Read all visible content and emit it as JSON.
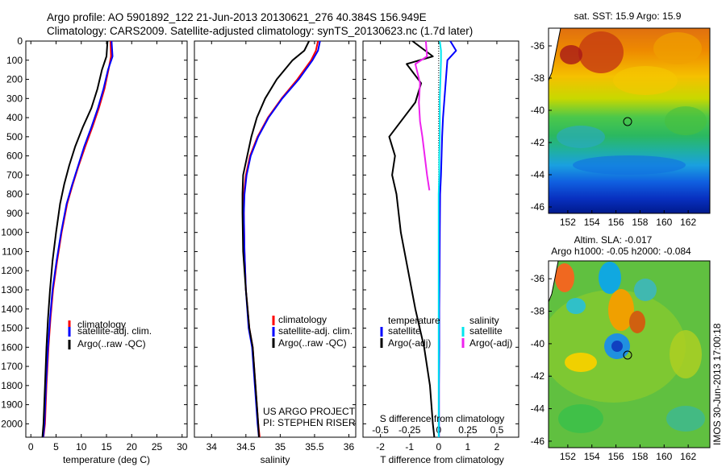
{
  "header": {
    "line1": "Argo profile: AO 5901892_122 21-Jun-2013 20130621_276 40.384S 156.949E",
    "line2": "Climatology: CARS2009. Satellite-adjusted climatology: synTS_20130623.nc (1.7d later)"
  },
  "credit": "IMOS 30-Jun-2013 17:00:18",
  "project": {
    "line1": "US ARGO PROJECT",
    "line2": "PI: STEPHEN RISER"
  },
  "colors": {
    "climatology": "#ff0000",
    "satellite": "#0000ff",
    "argo": "#000000",
    "salinity_satellite": "#00e5ee",
    "salinity_argo": "#ee22ee"
  },
  "chart_data": [
    {
      "id": "temperature",
      "type": "line",
      "xlabel": "temperature (deg C)",
      "ylabel": "",
      "xlim": [
        -1,
        31
      ],
      "ylim": [
        2070,
        0
      ],
      "y_inverted": true,
      "xticks": [
        0,
        5,
        10,
        15,
        20,
        25,
        30
      ],
      "yticks": [
        0,
        100,
        200,
        300,
        400,
        500,
        600,
        700,
        800,
        900,
        1000,
        1100,
        1200,
        1300,
        1400,
        1500,
        1600,
        1700,
        1800,
        1900,
        2000
      ],
      "series": [
        {
          "name": "climatology",
          "color": "#ff0000",
          "x": [
            15.8,
            15.9,
            15.4,
            14.6,
            13.5,
            12.2,
            10.8,
            9.5,
            8.3,
            7.2,
            6.1,
            5.2,
            4.4,
            3.9,
            3.5,
            3.1,
            2.8,
            2.5
          ],
          "y": [
            0,
            80,
            150,
            250,
            350,
            450,
            550,
            650,
            750,
            850,
            1000,
            1150,
            1300,
            1450,
            1600,
            1800,
            2000,
            2070
          ]
        },
        {
          "name": "satellite-adj. clim.",
          "color": "#0000ff",
          "x": [
            16.0,
            16.2,
            15.3,
            14.4,
            13.3,
            12.0,
            10.6,
            9.4,
            8.2,
            7.1,
            6.0,
            5.1,
            4.3,
            3.8,
            3.4,
            3.0,
            2.7,
            2.45
          ],
          "y": [
            0,
            80,
            150,
            250,
            350,
            450,
            550,
            650,
            750,
            850,
            1000,
            1150,
            1300,
            1450,
            1600,
            1800,
            2000,
            2070
          ]
        },
        {
          "name": "Argo(..raw -QC)",
          "color": "#000000",
          "x": [
            15.2,
            15.0,
            14.1,
            13.2,
            12.0,
            10.3,
            8.8,
            7.6,
            6.6,
            5.8,
            5.0,
            4.3,
            3.8,
            3.4,
            3.1,
            2.8,
            2.5,
            2.3
          ],
          "y": [
            0,
            80,
            150,
            250,
            350,
            450,
            550,
            650,
            750,
            850,
            1000,
            1150,
            1300,
            1450,
            1600,
            1800,
            2000,
            2070
          ]
        }
      ],
      "legend": [
        "climatology",
        "satellite-adj. clim.",
        "Argo(..raw -QC)"
      ]
    },
    {
      "id": "salinity",
      "type": "line",
      "xlabel": "salinity",
      "ylabel": "",
      "xlim": [
        33.75,
        36.1
      ],
      "ylim": [
        2070,
        0
      ],
      "y_inverted": true,
      "xticks": [
        34,
        34.5,
        35,
        35.5,
        36
      ],
      "xticklabels": [
        "34",
        "34.5",
        "35",
        "35.5",
        "36"
      ],
      "series": [
        {
          "name": "climatology",
          "color": "#ff0000",
          "x": [
            35.55,
            35.52,
            35.45,
            35.25,
            35.02,
            34.82,
            34.67,
            34.56,
            34.5,
            34.47,
            34.47,
            34.48,
            34.5,
            34.55,
            34.6,
            34.64,
            34.68,
            34.7
          ],
          "y": [
            0,
            50,
            100,
            200,
            300,
            400,
            500,
            600,
            700,
            800,
            900,
            1100,
            1300,
            1500,
            1600,
            1800,
            2000,
            2070
          ]
        },
        {
          "name": "satellite-adj. clim.",
          "color": "#0000ff",
          "x": [
            35.58,
            35.55,
            35.47,
            35.27,
            35.03,
            34.83,
            34.68,
            34.57,
            34.51,
            34.48,
            34.47,
            34.48,
            34.5,
            34.54,
            34.59,
            34.63,
            34.67,
            34.69
          ],
          "y": [
            0,
            50,
            100,
            200,
            300,
            400,
            500,
            600,
            700,
            800,
            900,
            1100,
            1300,
            1500,
            1600,
            1800,
            2000,
            2070
          ]
        },
        {
          "name": "Argo(..raw -QC)",
          "color": "#000000",
          "x": [
            35.42,
            35.35,
            35.18,
            34.95,
            34.78,
            34.66,
            34.58,
            34.52,
            34.46,
            34.45,
            34.45,
            34.46,
            34.5,
            34.55,
            34.6,
            34.64,
            34.68,
            34.69
          ],
          "y": [
            0,
            50,
            100,
            200,
            300,
            400,
            500,
            600,
            700,
            800,
            900,
            1100,
            1300,
            1500,
            1600,
            1800,
            2000,
            2070
          ]
        }
      ],
      "legend": [
        "climatology",
        "satellite-adj. clim.",
        "Argo(..raw -QC)"
      ]
    },
    {
      "id": "difference",
      "type": "line",
      "xlabel": "T difference from climatology",
      "xlabel_top": "S difference from climatology",
      "xlim": [
        -2.6,
        2.75
      ],
      "ylim": [
        2070,
        0
      ],
      "y_inverted": true,
      "xticks": [
        -2,
        -1,
        0,
        1,
        2
      ],
      "xticks_s": [
        -0.5,
        -0.25,
        0,
        0.25,
        0.5
      ],
      "xticklabels_s": [
        "-0.5",
        "-0.25",
        "0",
        "0.25",
        "0.5"
      ],
      "series": [
        {
          "name": "temperature satellite",
          "color": "#0000ff",
          "x": [
            0.4,
            0.6,
            0.3,
            0.25,
            0.2,
            0.15,
            0.12,
            0.1,
            0.08,
            0.05,
            0.04,
            0.03,
            0.02,
            0.02,
            0.01,
            0.01,
            0.01
          ],
          "y": [
            0,
            50,
            100,
            200,
            300,
            400,
            500,
            600,
            700,
            800,
            1000,
            1200,
            1400,
            1600,
            1800,
            2000,
            2070
          ]
        },
        {
          "name": "temperature Argo(-adj)",
          "color": "#000000",
          "x": [
            -0.9,
            -0.2,
            -1.1,
            -0.6,
            -0.8,
            -1.3,
            -1.7,
            -1.5,
            -1.6,
            -1.45,
            -1.3,
            -1.05,
            -0.8,
            -0.5,
            -0.3,
            -0.2,
            -0.15
          ],
          "y": [
            0,
            80,
            120,
            220,
            320,
            420,
            500,
            600,
            700,
            800,
            1000,
            1200,
            1400,
            1600,
            1800,
            2000,
            2070
          ]
        },
        {
          "name": "salinity satellite",
          "color": "#00e5ee",
          "x": [
            0.01,
            0.02,
            0.02,
            0.015,
            0.01,
            0.01,
            0.01,
            0.005,
            0.005,
            0.0,
            0.0,
            0.0,
            0.0,
            0.0,
            0.0,
            0.0,
            0.0
          ],
          "y": [
            0,
            50,
            100,
            200,
            300,
            400,
            500,
            600,
            700,
            800,
            1000,
            1200,
            1400,
            1600,
            1800,
            2000,
            2070
          ]
        },
        {
          "name": "salinity Argo(-adj)",
          "color": "#ee22ee",
          "x": [
            -0.11,
            -0.1,
            -0.2,
            -0.16,
            -0.17,
            -0.16,
            -0.14,
            -0.12,
            -0.1,
            -0.08
          ],
          "y": [
            0,
            80,
            120,
            220,
            320,
            420,
            500,
            600,
            700,
            780
          ]
        }
      ],
      "legend_headers": [
        "temperature",
        "salinity"
      ],
      "legend": [
        "satellite",
        "Argo(-adj)",
        "satellite",
        "Argo(-adj)"
      ]
    },
    {
      "id": "sst-map",
      "type": "heatmap",
      "title": "sat. SST: 15.9 Argo: 15.9",
      "xticks": [
        152,
        154,
        156,
        158,
        160,
        162
      ],
      "yticks": [
        -36,
        -38,
        -40,
        -42,
        -44,
        -46
      ],
      "marker": {
        "lon": 156.95,
        "lat": -40.38
      }
    },
    {
      "id": "sla-map",
      "type": "heatmap",
      "title_line1": "Altim. SLA: -0.017",
      "title_line2": "Argo h1000: -0.05 h2000: -0.084",
      "xticks": [
        152,
        154,
        156,
        158,
        160,
        162
      ],
      "yticks": [
        -36,
        -38,
        -40,
        -42,
        -44,
        -46
      ],
      "marker": {
        "lon": 156.95,
        "lat": -40.38
      }
    }
  ]
}
